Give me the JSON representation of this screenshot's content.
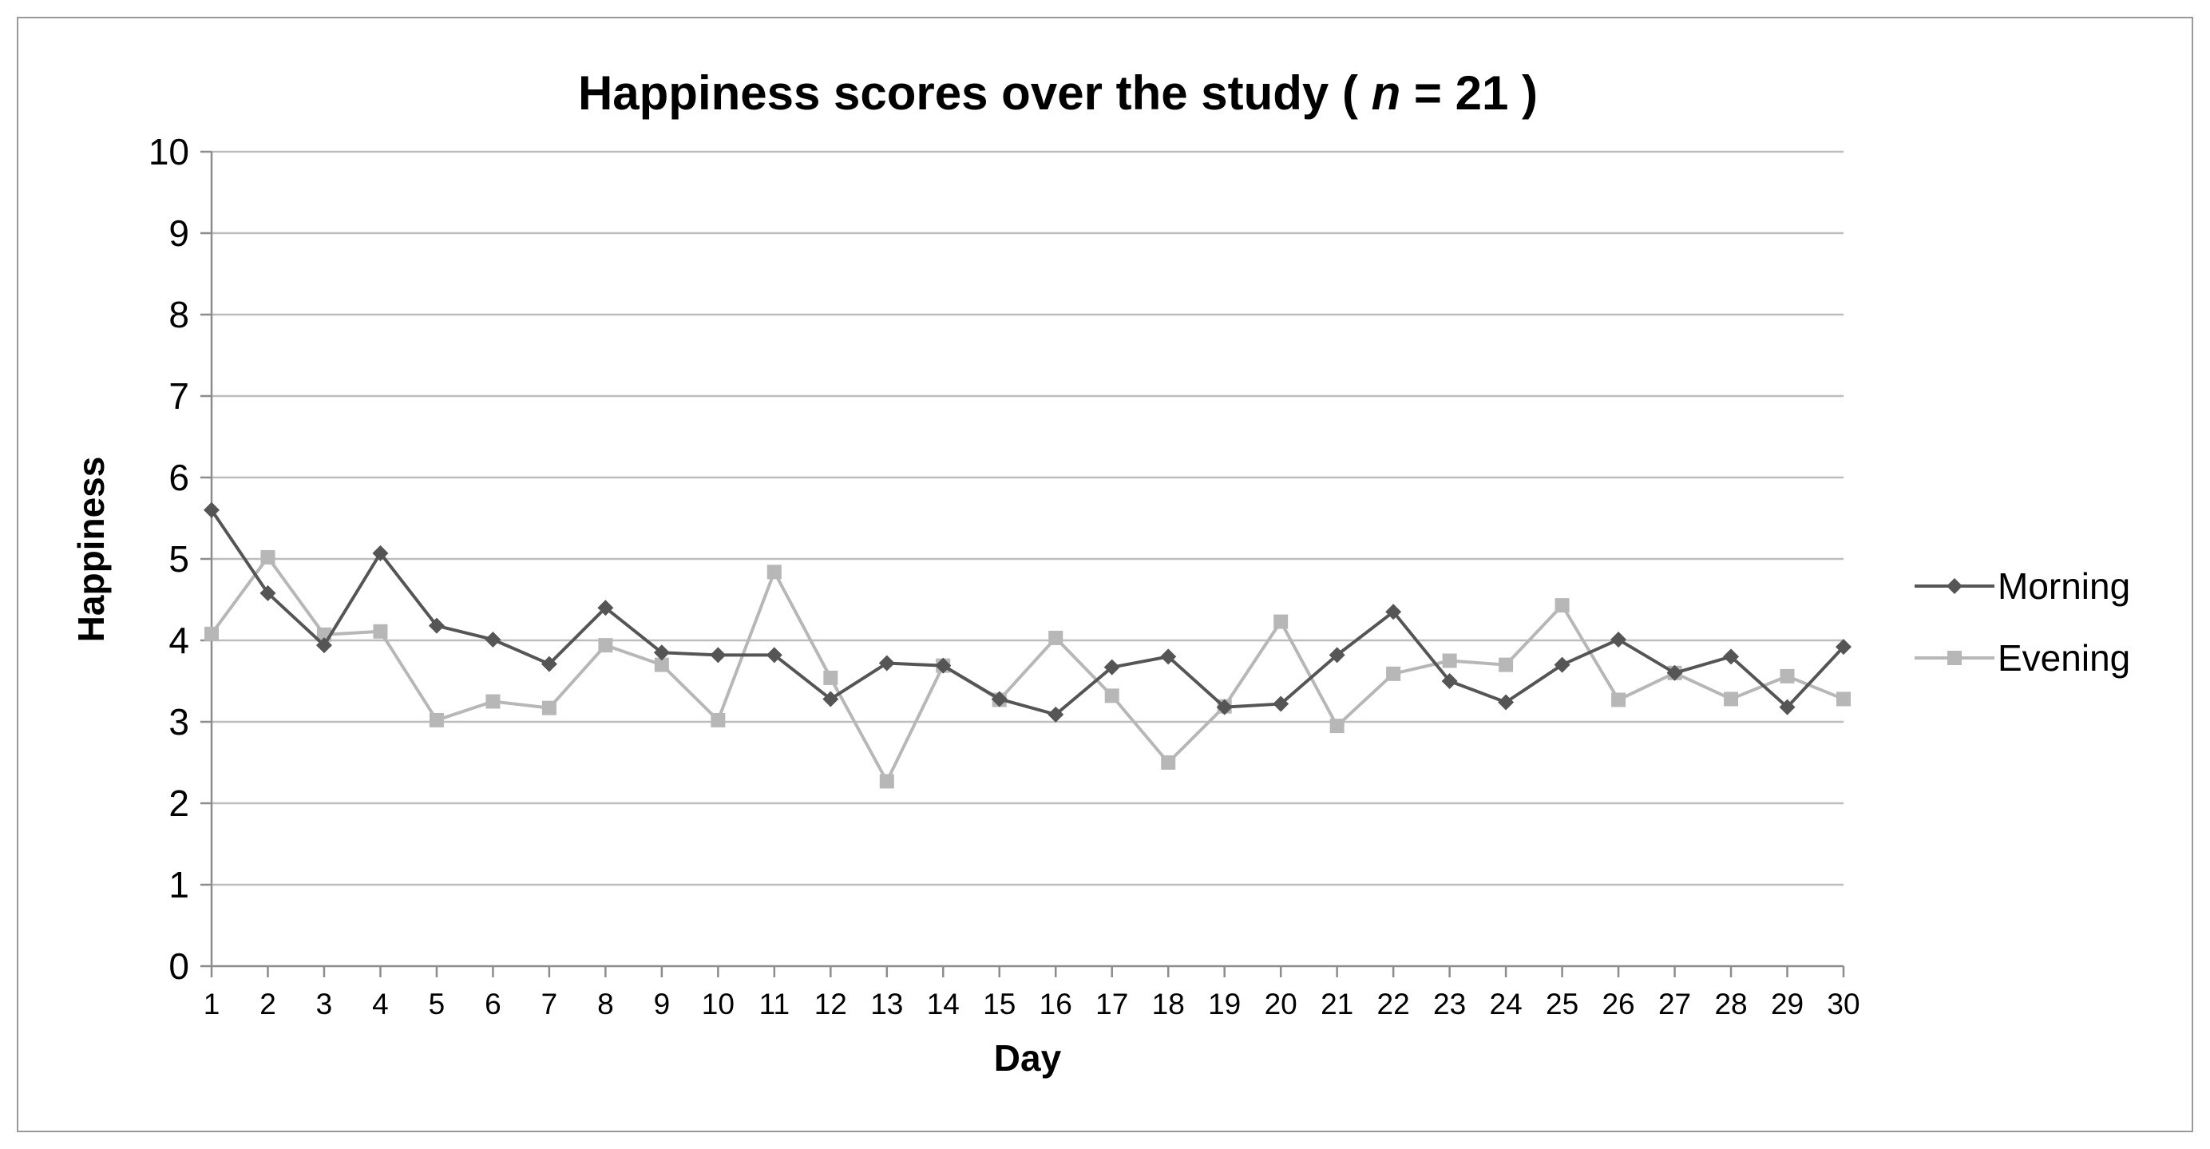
{
  "chart_data": {
    "type": "line",
    "title_main": "Happiness scores over the study ( ",
    "title_n": "n",
    "title_rest": " = 21 )",
    "xlabel": "Day",
    "ylabel": "Happiness",
    "ylim": [
      0,
      10
    ],
    "yticks": [
      "0",
      "1",
      "2",
      "3",
      "4",
      "5",
      "6",
      "7",
      "8",
      "9",
      "10"
    ],
    "categories": [
      "1",
      "2",
      "3",
      "4",
      "5",
      "6",
      "7",
      "8",
      "9",
      "10",
      "11",
      "12",
      "13",
      "14",
      "15",
      "16",
      "17",
      "18",
      "19",
      "20",
      "21",
      "22",
      "23",
      "24",
      "25",
      "26",
      "27",
      "28",
      "29",
      "30"
    ],
    "grid": true,
    "legend_position": "right",
    "series": [
      {
        "name": "Morning",
        "color": "#555555",
        "marker": "diamond",
        "values": [
          5.6,
          4.58,
          3.94,
          5.07,
          4.18,
          4.01,
          3.71,
          4.4,
          3.85,
          3.82,
          3.82,
          3.28,
          3.72,
          3.69,
          3.28,
          3.09,
          3.67,
          3.8,
          3.18,
          3.22,
          3.82,
          4.35,
          3.5,
          3.24,
          3.7,
          4.01,
          3.6,
          3.8,
          3.18,
          3.92
        ]
      },
      {
        "name": "Evening",
        "color": "#b7b7b7",
        "marker": "square",
        "values": [
          4.08,
          5.02,
          4.07,
          4.11,
          3.02,
          3.25,
          3.17,
          3.94,
          3.7,
          3.02,
          4.84,
          3.54,
          2.27,
          3.69,
          3.27,
          4.03,
          3.32,
          2.5,
          3.19,
          4.23,
          2.95,
          3.59,
          3.75,
          3.7,
          4.43,
          3.27,
          3.6,
          3.28,
          3.56,
          3.28
        ]
      }
    ]
  }
}
